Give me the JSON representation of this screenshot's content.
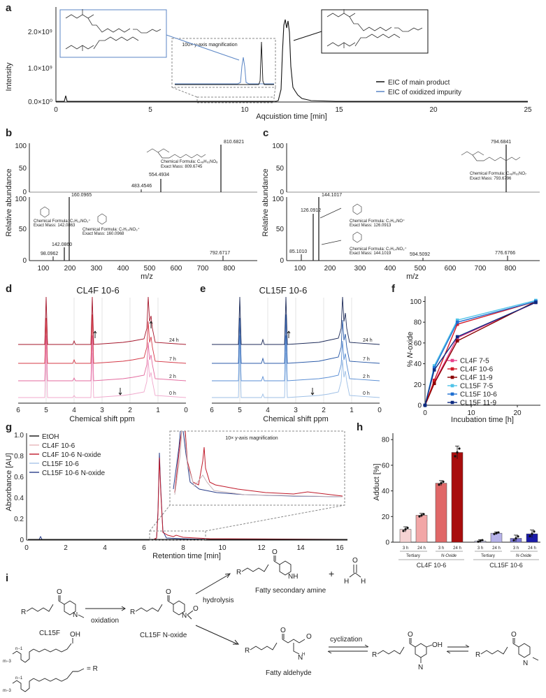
{
  "panels": {
    "a": "a",
    "b": "b",
    "c": "c",
    "d": "d",
    "e": "e",
    "f": "f",
    "g": "g",
    "h": "h",
    "i": "i"
  },
  "panel_a": {
    "ylabel": "Intensity",
    "xlabel": "Aqcuistion time [min]",
    "yticks": [
      "2.0×10⁹",
      "1.0×10⁹",
      "0.0×10⁰"
    ],
    "xticks": [
      "0",
      "5",
      "10",
      "15",
      "20",
      "25"
    ],
    "inset_label": "100× y-axis magnification",
    "legend_main": "EIC of main product",
    "legend_oxid": "EIC of oxidized impurity"
  },
  "panel_b": {
    "ylabel": "Relative abundance",
    "xlabel": "m/z",
    "xticks": [
      "100",
      "200",
      "300",
      "400",
      "500",
      "600",
      "700",
      "800"
    ],
    "yticks_top": [
      "100",
      "50",
      "0"
    ],
    "yticks_bot": [
      "100",
      "50",
      "0"
    ],
    "peaks_top": [
      "810.6821",
      "554.4934",
      "483.4546"
    ],
    "peaks_bot": [
      "160.0965",
      "142.0860",
      "98.0962",
      "792.6717"
    ],
    "formula_main": "Chemical Formula: C₄₈H₉₁NO₈",
    "mass_main": "Exact Mass: 809.6745",
    "formula_f1": "Chemical Formula: C₇H₁₂NO₂⁺",
    "mass_f1": "Exact Mass: 142.0863",
    "formula_f2": "Chemical Formula: C₇H₁₄NO₃⁺",
    "mass_f2": "Exact Mass: 160.0968"
  },
  "panel_c": {
    "ylabel": "Relative abundance",
    "xlabel": "m/z",
    "xticks": [
      "100",
      "200",
      "300",
      "400",
      "500",
      "600",
      "700",
      "800"
    ],
    "yticks_top": [
      "100",
      "50",
      "0"
    ],
    "yticks_bot": [
      "100",
      "50",
      "0"
    ],
    "peaks_top": [
      "794.6841"
    ],
    "peaks_bot": [
      "144.1017",
      "126.0912",
      "85.1010",
      "594.5092",
      "776.6766"
    ],
    "formula_main": "Chemical Formula: C₄₈H₉₁NO₇",
    "mass_main": "Exact Mass: 793.6796",
    "formula_f1": "Chemical Formula: C₇H₁₂NO⁺",
    "mass_f1": "Exact Mass: 126.0913",
    "formula_f2": "Chemical Formula: C₇H₁₄NO₂⁺",
    "mass_f2": "Exact Mass: 144.1019"
  },
  "panel_d": {
    "title": "CL4F 10-6",
    "xlabel": "Chemical shift ppm",
    "xticks": [
      "6",
      "5",
      "4",
      "3",
      "2",
      "1",
      "0"
    ],
    "traces": [
      "24 h",
      "7 h",
      "2 h",
      "0 h"
    ]
  },
  "panel_e": {
    "title": "CL15F 10-6",
    "xlabel": "Chemical shift ppm",
    "xticks": [
      "6",
      "5",
      "4",
      "3",
      "2",
      "1",
      "0"
    ],
    "traces": [
      "24 h",
      "7 h",
      "2 h",
      "0 h"
    ]
  },
  "panel_g": {
    "ylabel": "Absorbance [AU]",
    "xlabel": "Retention time [min]",
    "xticks": [
      "0",
      "2",
      "4",
      "6",
      "8",
      "10",
      "12",
      "14",
      "16"
    ],
    "yticks": [
      "1.0",
      "0.8",
      "0.6",
      "0.4",
      "0.2",
      "0"
    ],
    "inset_label": "10× y-axis magnification",
    "legend": [
      "EtOH",
      "CL4F 10-6",
      "CL4F 10-6 N-oxide",
      "CL15F 10-6",
      "CL15F 10-6 N-oxide"
    ]
  },
  "panel_h": {
    "ylabel": "Adduct [%]",
    "yticks": [
      "80",
      "60",
      "40",
      "20",
      "0"
    ],
    "time_labels": [
      "3 h",
      "24 h",
      "3 h",
      "24 h",
      "3 h",
      "24 h",
      "3 h",
      "24 h"
    ],
    "group_labels": [
      "Tertiary",
      "N-Oxide",
      "Tertiary",
      "N-Oxide"
    ],
    "lnp_labels": [
      "CL4F 10-6",
      "CL15F 10-6"
    ]
  },
  "panel_i": {
    "cl15f": "CL15F",
    "oxidation": "oxidation",
    "cl15f_noxide": "CL15F N-oxide",
    "hydrolysis": "hydrolysis",
    "fatty_secondary_amine": "Fatty secondary amine",
    "plus": "+",
    "fatty_aldehyde": "Fatty aldehyde",
    "cyclization": "cyclization",
    "r_eq": "= R",
    "r": "R",
    "oh": "OH",
    "o": "O",
    "h": "H",
    "n": "N",
    "nh": "NH",
    "h_n": "H",
    "n_minus_1": "n−1",
    "m_minus_3": "m−3"
  },
  "chart_data": [
    {
      "type": "line",
      "panel": "f",
      "title": "",
      "xlabel": "Incubation time [h]",
      "ylabel": "% N-oxide",
      "xlim": [
        0,
        25
      ],
      "ylim": [
        0,
        105
      ],
      "xticks": [
        "0",
        "10",
        "20"
      ],
      "yticks": [
        "100",
        "80",
        "60",
        "40",
        "20",
        "0"
      ],
      "x": [
        0,
        2,
        7,
        24
      ],
      "series": [
        {
          "name": "CL4F 7-5",
          "color": "#e8418b",
          "values": [
            0,
            22,
            65,
            99
          ]
        },
        {
          "name": "CL4F 10-6",
          "color": "#d11a2a",
          "values": [
            0,
            24,
            78,
            100
          ]
        },
        {
          "name": "CL4F 11-9",
          "color": "#8b0000",
          "values": [
            0,
            21,
            62,
            100
          ]
        },
        {
          "name": "CL15F 7-5",
          "color": "#4fc3e8",
          "values": [
            0,
            38,
            82,
            101
          ]
        },
        {
          "name": "CL15F 10-6",
          "color": "#1f6fd1",
          "values": [
            0,
            36,
            80,
            100
          ]
        },
        {
          "name": "CL15F 11-9",
          "color": "#0d2a80",
          "values": [
            0,
            34,
            66,
            99
          ]
        }
      ]
    },
    {
      "type": "bar",
      "panel": "h",
      "categories": [
        "CL4F 10-6 Tertiary 3 h",
        "CL4F 10-6 Tertiary 24 h",
        "CL4F 10-6 N-Oxide 3 h",
        "CL4F 10-6 N-Oxide 24 h",
        "CL15F 10-6 Tertiary 3 h",
        "CL15F 10-6 Tertiary 24 h",
        "CL15F 10-6 N-Oxide 3 h",
        "CL15F 10-6 N-Oxide 24 h"
      ],
      "values": [
        10,
        21,
        46,
        70,
        1,
        7,
        3,
        6.5
      ],
      "errors": [
        2,
        1.5,
        2,
        5,
        1,
        1,
        2.5,
        3
      ],
      "colors": [
        "#f6d3d3",
        "#f2a7a7",
        "#e06868",
        "#a80d0d",
        "#cfcfee",
        "#b7b3ea",
        "#7c78d8",
        "#1a1aa8"
      ],
      "ylabel": "Adduct [%]",
      "ylim": [
        0,
        85
      ]
    }
  ]
}
